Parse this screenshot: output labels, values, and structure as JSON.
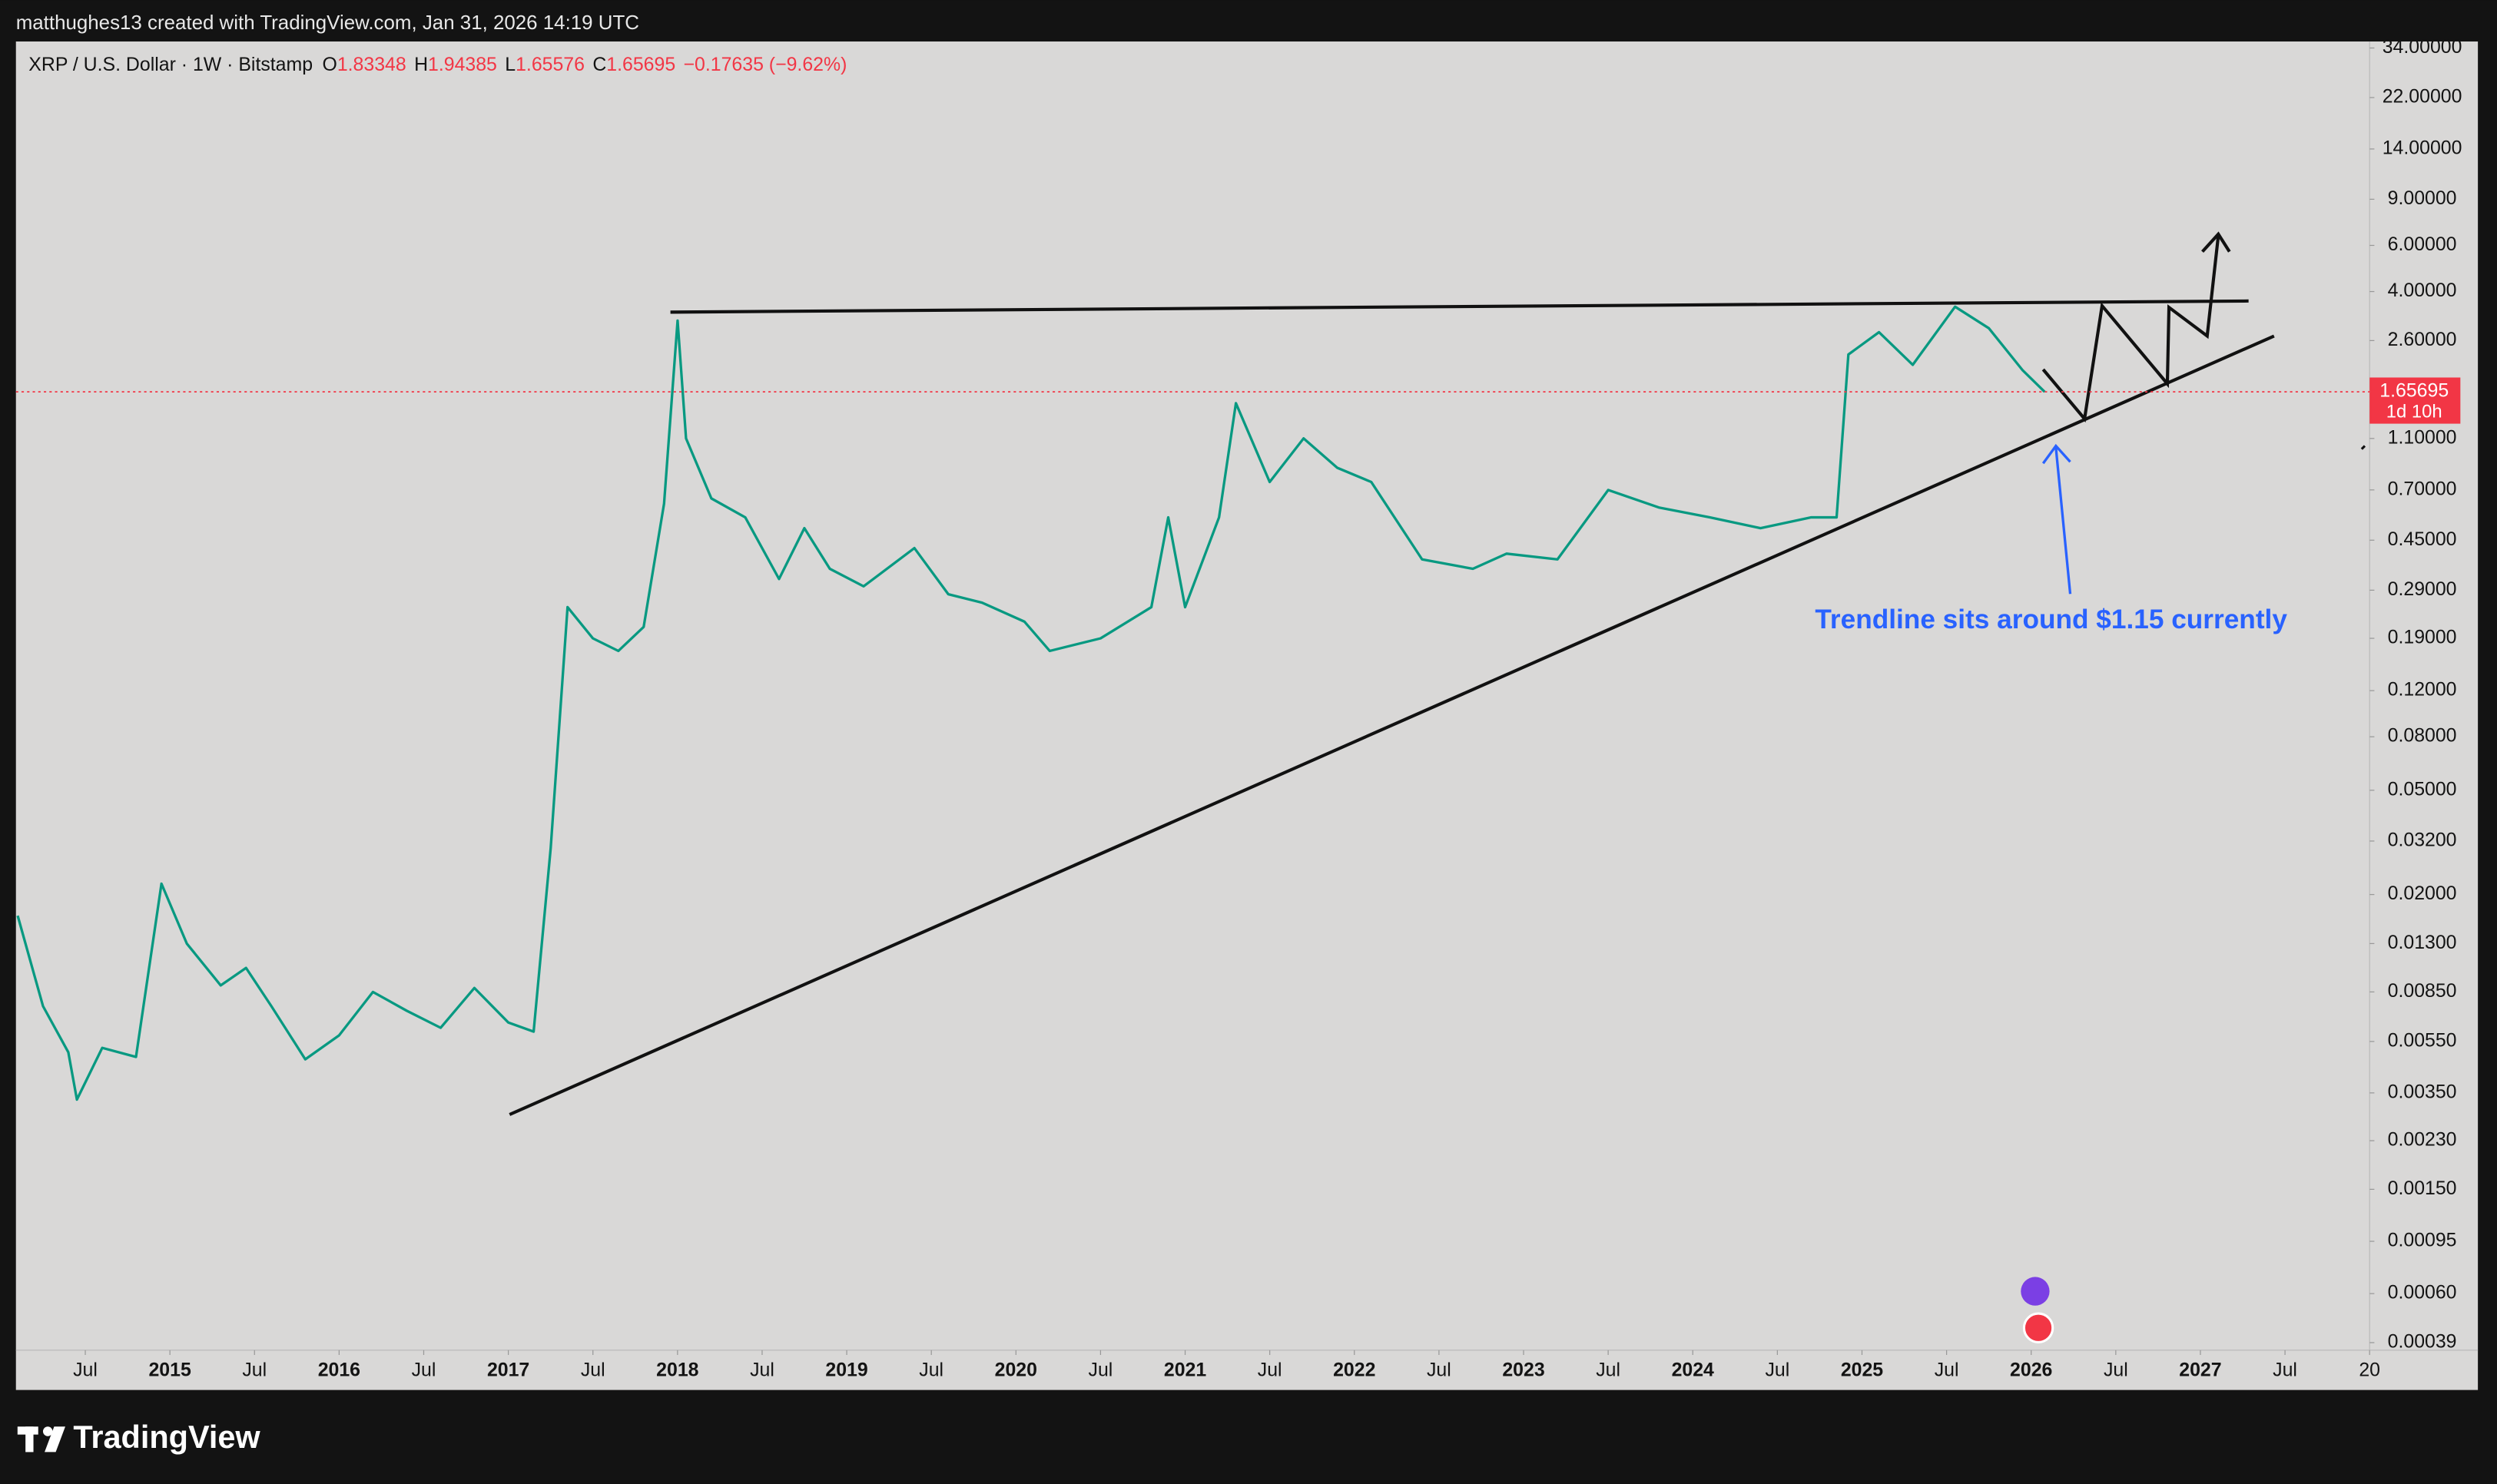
{
  "chart_data": {
    "type": "line",
    "header": "matthughes13 created with TradingView.com, Jan 31, 2026 14:19 UTC",
    "symbol": "XRP / U.S. Dollar · 1W · Bitstamp",
    "ohlc": [
      {
        "label": "O",
        "value": 1.83348
      },
      {
        "label": "H",
        "value": 1.94385
      },
      {
        "label": "L",
        "value": 1.65576
      },
      {
        "label": "C",
        "value": 1.65695
      }
    ],
    "change_label": "−0.17635 (−9.62%)",
    "last_price": 1.65695,
    "countdown": "1d 10h",
    "annotation": "Trendline sits around $1.15 currently",
    "brand": "TradingView",
    "log_scale": true,
    "color": "#089981",
    "last_color": "#f23645",
    "x": [
      2014.1,
      2014.25,
      2014.4,
      2014.45,
      2014.6,
      2014.8,
      2014.95,
      2015.1,
      2015.3,
      2015.45,
      2015.6,
      2015.8,
      2016.0,
      2016.2,
      2016.4,
      2016.6,
      2016.8,
      2017.0,
      2017.15,
      2017.25,
      2017.35,
      2017.5,
      2017.65,
      2017.8,
      2017.92,
      2018.0,
      2018.05,
      2018.2,
      2018.4,
      2018.6,
      2018.75,
      2018.9,
      2019.1,
      2019.4,
      2019.6,
      2019.8,
      2020.05,
      2020.2,
      2020.5,
      2020.8,
      2020.9,
      2021.0,
      2021.2,
      2021.3,
      2021.5,
      2021.7,
      2021.9,
      2022.1,
      2022.4,
      2022.7,
      2022.9,
      2023.2,
      2023.5,
      2023.8,
      2024.1,
      2024.4,
      2024.7,
      2024.85,
      2024.92,
      2025.1,
      2025.3,
      2025.55,
      2025.75,
      2025.95,
      2026.08
    ],
    "values": [
      0.0166,
      0.0075,
      0.005,
      0.0033,
      0.0052,
      0.0048,
      0.022,
      0.013,
      0.009,
      0.0105,
      0.0075,
      0.0047,
      0.0058,
      0.0085,
      0.0072,
      0.0062,
      0.0088,
      0.0065,
      0.006,
      0.03,
      0.25,
      0.19,
      0.17,
      0.21,
      0.62,
      3.1,
      1.1,
      0.65,
      0.55,
      0.32,
      0.5,
      0.35,
      0.3,
      0.42,
      0.28,
      0.26,
      0.22,
      0.17,
      0.19,
      0.25,
      0.55,
      0.25,
      0.55,
      1.5,
      0.75,
      1.1,
      0.85,
      0.75,
      0.38,
      0.35,
      0.4,
      0.38,
      0.7,
      0.6,
      0.55,
      0.5,
      0.55,
      0.55,
      2.3,
      2.8,
      2.1,
      3.5,
      2.9,
      2.0,
      1.65695
    ],
    "xlim": [
      2014.09,
      2028.0
    ],
    "xticks": [
      {
        "value": 2014.5,
        "label": "Jul"
      },
      2015,
      {
        "value": 2015.5,
        "label": "Jul"
      },
      2016,
      {
        "value": 2016.5,
        "label": "Jul"
      },
      2017,
      {
        "value": 2017.5,
        "label": "Jul"
      },
      2018,
      {
        "value": 2018.5,
        "label": "Jul"
      },
      2019,
      {
        "value": 2019.5,
        "label": "Jul"
      },
      2020,
      {
        "value": 2020.5,
        "label": "Jul"
      },
      2021,
      {
        "value": 2021.5,
        "label": "Jul"
      },
      2022,
      {
        "value": 2022.5,
        "label": "Jul"
      },
      2023,
      {
        "value": 2023.5,
        "label": "Jul"
      },
      2024,
      {
        "value": 2024.5,
        "label": "Jul"
      },
      2025,
      {
        "value": 2025.5,
        "label": "Jul"
      },
      2026,
      {
        "value": 2026.5,
        "label": "Jul"
      },
      2027,
      {
        "value": 2027.5,
        "label": "Jul"
      },
      {
        "value": 2028,
        "label": "20"
      }
    ],
    "ylim": [
      0.000365,
      36
    ],
    "yticks": [
      {
        "value": 34,
        "label": "34.00000"
      },
      {
        "value": 22,
        "label": "22.00000"
      },
      {
        "value": 14,
        "label": "14.00000"
      },
      {
        "value": 9,
        "label": "9.00000"
      },
      {
        "value": 6,
        "label": "6.00000"
      },
      {
        "value": 4,
        "label": "4.00000"
      },
      {
        "value": 2.6,
        "label": "2.60000"
      },
      {
        "value": 1.1,
        "label": "1.10000"
      },
      {
        "value": 0.7,
        "label": "0.70000"
      },
      {
        "value": 0.45,
        "label": "0.45000"
      },
      {
        "value": 0.29,
        "label": "0.29000"
      },
      {
        "value": 0.19,
        "label": "0.19000"
      },
      {
        "value": 0.12,
        "label": "0.12000"
      },
      {
        "value": 0.08,
        "label": "0.08000"
      },
      {
        "value": 0.05,
        "label": "0.05000"
      },
      {
        "value": 0.032,
        "label": "0.03200"
      },
      {
        "value": 0.02,
        "label": "0.02000"
      },
      {
        "value": 0.013,
        "label": "0.01300"
      },
      {
        "value": 0.0085,
        "label": "0.00850"
      },
      {
        "value": 0.0055,
        "label": "0.00550"
      },
      {
        "value": 0.0035,
        "label": "0.00350"
      },
      {
        "value": 0.0023,
        "label": "0.00230"
      },
      {
        "value": 0.0015,
        "label": "0.00150"
      },
      {
        "value": 0.00095,
        "label": "0.00095"
      },
      {
        "value": 0.0006,
        "label": "0.00060"
      },
      {
        "value": 0.00039,
        "label": "0.00039"
      }
    ]
  }
}
